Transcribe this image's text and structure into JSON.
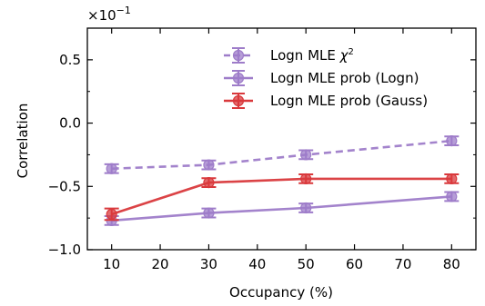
{
  "chart_data": {
    "type": "line",
    "xlabel": "Occupancy (%)",
    "ylabel": "Correlation",
    "y_multiplier_label": "×10",
    "y_multiplier_exponent": "−1",
    "xlim": [
      5,
      85
    ],
    "ylim": [
      -1.0,
      0.75
    ],
    "x_ticks": [
      10,
      20,
      30,
      40,
      50,
      60,
      70,
      80
    ],
    "x_tick_labels": [
      "10",
      "20",
      "30",
      "40",
      "50",
      "60",
      "70",
      "80"
    ],
    "y_ticks": [
      -1.0,
      -0.5,
      0.0,
      0.5
    ],
    "y_tick_labels": [
      "−1.0",
      "−0.5",
      "0.0",
      "0.5"
    ],
    "grid": false,
    "legend_position": "top-right",
    "x": [
      10,
      30,
      50,
      80
    ],
    "series": [
      {
        "name": "Logn MLE χ²",
        "legend_main": "Logn MLE ",
        "legend_sym": "χ",
        "legend_sup": "2",
        "color": "#9e7cc9",
        "dashed": true,
        "values": [
          -0.36,
          -0.33,
          -0.25,
          -0.14
        ],
        "errors": [
          0.035,
          0.035,
          0.035,
          0.035
        ]
      },
      {
        "name": "Logn MLE prob (Logn)",
        "color": "#9e7cc9",
        "dashed": false,
        "values": [
          -0.77,
          -0.71,
          -0.67,
          -0.58
        ],
        "errors": [
          0.035,
          0.035,
          0.035,
          0.035
        ]
      },
      {
        "name": "Logn MLE prob (Gauss)",
        "color": "#d9393c",
        "dashed": false,
        "values": [
          -0.72,
          -0.47,
          -0.44,
          -0.44
        ],
        "errors": [
          0.045,
          0.035,
          0.035,
          0.035
        ]
      }
    ]
  }
}
